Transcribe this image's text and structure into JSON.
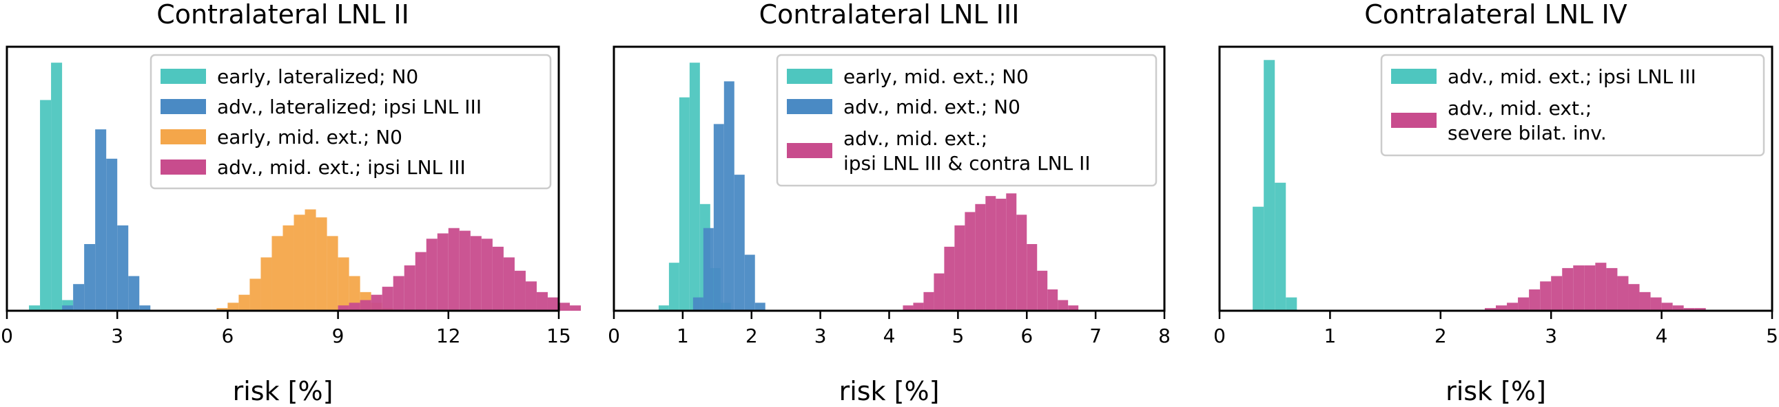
{
  "chart_data": [
    {
      "type": "bar",
      "title": "Contralateral LNL II",
      "xlabel": "risk [%]",
      "ylabel": "",
      "xlim": [
        0,
        15
      ],
      "xticks": [
        0,
        3,
        6,
        9,
        12,
        15
      ],
      "xtick_labels": [
        "0",
        "3",
        "6",
        "9",
        "12",
        "15"
      ],
      "ylim": [
        0,
        1
      ],
      "grid": false,
      "legend_position": "top-right",
      "series": [
        {
          "name": "early, lateralized; N0",
          "color": "#4ec6bf",
          "bin_start": 0.6,
          "bin_width": 0.3,
          "values": [
            0.02,
            0.79,
            0.93,
            0.04
          ]
        },
        {
          "name": "adv., lateralized; ipsi LNL III",
          "color": "#4a8ac4",
          "bin_start": 1.5,
          "bin_width": 0.3,
          "values": [
            0.02,
            0.1,
            0.25,
            0.68,
            0.57,
            0.32,
            0.13,
            0.02
          ]
        },
        {
          "name": "early, mid. ext.; N0",
          "color": "#f4a64a",
          "bin_start": 5.7,
          "bin_width": 0.3,
          "values": [
            0.01,
            0.03,
            0.06,
            0.12,
            0.2,
            0.28,
            0.32,
            0.36,
            0.38,
            0.35,
            0.28,
            0.2,
            0.13,
            0.07,
            0.03,
            0.01
          ]
        },
        {
          "name": "adv., mid. ext.; ipsi LNL III",
          "color": "#c84c8d",
          "bin_start": 9.0,
          "bin_width": 0.3,
          "values": [
            0.02,
            0.03,
            0.04,
            0.06,
            0.09,
            0.13,
            0.17,
            0.22,
            0.27,
            0.29,
            0.31,
            0.3,
            0.28,
            0.27,
            0.24,
            0.2,
            0.15,
            0.11,
            0.07,
            0.05,
            0.03,
            0.02
          ]
        }
      ]
    },
    {
      "type": "bar",
      "title": "Contralateral LNL III",
      "xlabel": "risk [%]",
      "ylabel": "",
      "xlim": [
        0,
        8
      ],
      "xticks": [
        0,
        1,
        2,
        3,
        4,
        5,
        6,
        7,
        8
      ],
      "xtick_labels": [
        "0",
        "1",
        "2",
        "3",
        "4",
        "5",
        "6",
        "7",
        "8"
      ],
      "ylim": [
        0,
        1
      ],
      "grid": false,
      "legend_position": "top-right",
      "series": [
        {
          "name": "early, mid. ext.; N0",
          "color": "#4ec6bf",
          "bin_start": 0.65,
          "bin_width": 0.15,
          "values": [
            0.02,
            0.18,
            0.8,
            0.93,
            0.4,
            0.16,
            0.03
          ]
        },
        {
          "name": "adv., mid. ext.; N0",
          "color": "#4a8ac4",
          "bin_start": 1.15,
          "bin_width": 0.15,
          "values": [
            0.05,
            0.31,
            0.7,
            0.86,
            0.51,
            0.21,
            0.03
          ]
        },
        {
          "name": "adv., mid. ext.;\nipsi LNL III & contra LNL II",
          "name_lines": [
            "adv., mid. ext.;",
            "ipsi LNL III & contra LNL II"
          ],
          "color": "#c84c8d",
          "bin_start": 4.2,
          "bin_width": 0.15,
          "values": [
            0.02,
            0.03,
            0.07,
            0.14,
            0.24,
            0.32,
            0.37,
            0.4,
            0.43,
            0.42,
            0.44,
            0.36,
            0.25,
            0.15,
            0.08,
            0.04,
            0.02
          ]
        }
      ]
    },
    {
      "type": "bar",
      "title": "Contralateral LNL IV",
      "xlabel": "risk [%]",
      "ylabel": "",
      "xlim": [
        0,
        5
      ],
      "xticks": [
        0,
        1,
        2,
        3,
        4,
        5
      ],
      "xtick_labels": [
        "0",
        "1",
        "2",
        "3",
        "4",
        "5"
      ],
      "ylim": [
        0,
        1
      ],
      "grid": false,
      "legend_position": "top-right",
      "series": [
        {
          "name": "adv., mid. ext.; ipsi LNL III",
          "color": "#4ec6bf",
          "bin_start": 0.3,
          "bin_width": 0.1,
          "values": [
            0.39,
            0.94,
            0.48,
            0.05
          ]
        },
        {
          "name": "adv., mid. ext.;\nsevere bilat. inv.",
          "name_lines": [
            "adv., mid. ext.;",
            "severe bilat. inv."
          ],
          "color": "#c84c8d",
          "bin_start": 2.4,
          "bin_width": 0.1,
          "values": [
            0.01,
            0.02,
            0.03,
            0.05,
            0.08,
            0.11,
            0.13,
            0.16,
            0.17,
            0.17,
            0.18,
            0.16,
            0.13,
            0.1,
            0.07,
            0.05,
            0.03,
            0.02,
            0.01,
            0.01
          ]
        }
      ]
    }
  ]
}
